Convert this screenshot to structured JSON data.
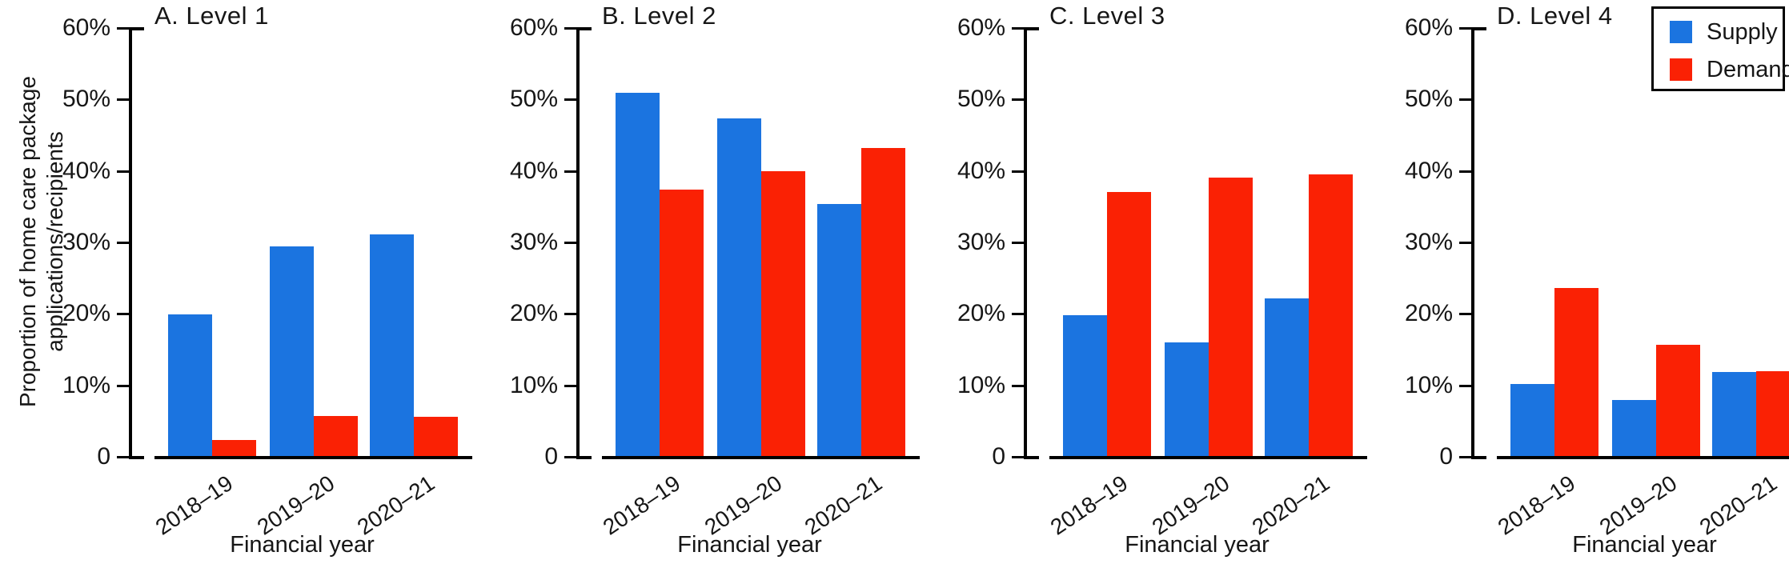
{
  "figure": {
    "ylabel_lines": [
      "Proportion of home care package",
      "applications/recipients"
    ],
    "xlabel": "Financial year",
    "ytick_labels": [
      "0",
      "10%",
      "20%",
      "30%",
      "40%",
      "50%",
      "60%"
    ],
    "colors": {
      "supply": "#1b74e0",
      "demand": "#fa2104",
      "axis": "#000000",
      "text": "#161616"
    }
  },
  "legend": {
    "position": "top-right",
    "items": [
      {
        "label": "Supply",
        "color": "#1b74e0"
      },
      {
        "label": "Demand",
        "color": "#fa2104"
      }
    ]
  },
  "chart_data": [
    {
      "type": "bar",
      "title": "A. Level 1",
      "categories": [
        "2018–19",
        "2019–20",
        "2020–21"
      ],
      "series": [
        {
          "name": "Supply",
          "color": "#1b74e0",
          "values": [
            19.8,
            29.3,
            31.0
          ]
        },
        {
          "name": "Demand",
          "color": "#fa2104",
          "values": [
            2.2,
            5.6,
            5.5
          ]
        }
      ],
      "xlabel": "Financial year",
      "ylabel": "Proportion of home care package applications/recipients",
      "ylim": [
        0,
        60
      ],
      "yticks": [
        0,
        10,
        20,
        30,
        40,
        50,
        60
      ],
      "grid": false
    },
    {
      "type": "bar",
      "title": "B. Level 2",
      "categories": [
        "2018–19",
        "2019–20",
        "2020–21"
      ],
      "series": [
        {
          "name": "Supply",
          "color": "#1b74e0",
          "values": [
            50.8,
            47.2,
            35.3
          ]
        },
        {
          "name": "Demand",
          "color": "#fa2104",
          "values": [
            37.3,
            39.8,
            43.1
          ]
        }
      ],
      "xlabel": "Financial year",
      "ylabel": "",
      "ylim": [
        0,
        60
      ],
      "yticks": [
        0,
        10,
        20,
        30,
        40,
        50,
        60
      ],
      "grid": false
    },
    {
      "type": "bar",
      "title": "C. Level 3",
      "categories": [
        "2018–19",
        "2019–20",
        "2020–21"
      ],
      "series": [
        {
          "name": "Supply",
          "color": "#1b74e0",
          "values": [
            19.7,
            15.9,
            22.1
          ]
        },
        {
          "name": "Demand",
          "color": "#fa2104",
          "values": [
            36.9,
            39.0,
            39.4
          ]
        }
      ],
      "xlabel": "Financial year",
      "ylabel": "",
      "ylim": [
        0,
        60
      ],
      "yticks": [
        0,
        10,
        20,
        30,
        40,
        50,
        60
      ],
      "grid": false
    },
    {
      "type": "bar",
      "title": "D. Level 4",
      "categories": [
        "2018–19",
        "2019–20",
        "2020–21"
      ],
      "series": [
        {
          "name": "Supply",
          "color": "#1b74e0",
          "values": [
            10.1,
            7.8,
            11.7
          ]
        },
        {
          "name": "Demand",
          "color": "#fa2104",
          "values": [
            23.5,
            15.6,
            11.9
          ]
        }
      ],
      "xlabel": "Financial year",
      "ylabel": "",
      "ylim": [
        0,
        60
      ],
      "yticks": [
        0,
        10,
        20,
        30,
        40,
        50,
        60
      ],
      "grid": false
    }
  ]
}
